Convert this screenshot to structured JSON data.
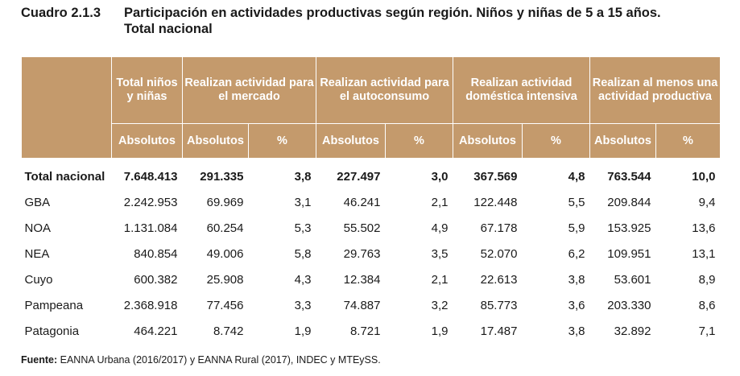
{
  "caption": {
    "number": "Cuadro 2.1.3",
    "title_line1": "Participación en actividades productivas según región. Niños y niñas de 5 a 15 años.",
    "title_line2": "Total nacional"
  },
  "header": {
    "groups": [
      "Total niños y niñas",
      "Realizan actividad para el mercado",
      "Realizan actividad para el autoconsumo",
      "Realizan actividad doméstica intensiva",
      "Realizan al menos una actividad productiva"
    ],
    "sub_abs": "Absolutos",
    "sub_pct": "%"
  },
  "rows": [
    {
      "region": "Total nacional",
      "total": "7.648.413",
      "m_abs": "291.335",
      "m_pct": "3,8",
      "a_abs": "227.497",
      "a_pct": "3,0",
      "d_abs": "367.569",
      "d_pct": "4,8",
      "p_abs": "763.544",
      "p_pct": "10,0"
    },
    {
      "region": "GBA",
      "total": "2.242.953",
      "m_abs": "69.969",
      "m_pct": "3,1",
      "a_abs": "46.241",
      "a_pct": "2,1",
      "d_abs": "122.448",
      "d_pct": "5,5",
      "p_abs": "209.844",
      "p_pct": "9,4"
    },
    {
      "region": "NOA",
      "total": "1.131.084",
      "m_abs": "60.254",
      "m_pct": "5,3",
      "a_abs": "55.502",
      "a_pct": "4,9",
      "d_abs": "67.178",
      "d_pct": "5,9",
      "p_abs": "153.925",
      "p_pct": "13,6"
    },
    {
      "region": "NEA",
      "total": "840.854",
      "m_abs": "49.006",
      "m_pct": "5,8",
      "a_abs": "29.763",
      "a_pct": "3,5",
      "d_abs": "52.070",
      "d_pct": "6,2",
      "p_abs": "109.951",
      "p_pct": "13,1"
    },
    {
      "region": "Cuyo",
      "total": "600.382",
      "m_abs": "25.908",
      "m_pct": "4,3",
      "a_abs": "12.384",
      "a_pct": "2,1",
      "d_abs": "22.613",
      "d_pct": "3,8",
      "p_abs": "53.601",
      "p_pct": "8,9"
    },
    {
      "region": "Pampeana",
      "total": "2.368.918",
      "m_abs": "77.456",
      "m_pct": "3,3",
      "a_abs": "74.887",
      "a_pct": "3,2",
      "d_abs": "85.773",
      "d_pct": "3,6",
      "p_abs": "203.330",
      "p_pct": "8,6"
    },
    {
      "region": "Patagonia",
      "total": "464.221",
      "m_abs": "8.742",
      "m_pct": "1,9",
      "a_abs": "8.721",
      "a_pct": "1,9",
      "d_abs": "17.487",
      "d_pct": "3,8",
      "p_abs": "32.892",
      "p_pct": "7,1"
    }
  ],
  "source": {
    "label": "Fuente:",
    "text": " EANNA Urbana (2016/2017) y EANNA Rural (2017), INDEC y MTEySS."
  },
  "colors": {
    "header_bg": "#c49a6c",
    "header_text": "#ffffff",
    "body_text": "#1a1a1a"
  }
}
